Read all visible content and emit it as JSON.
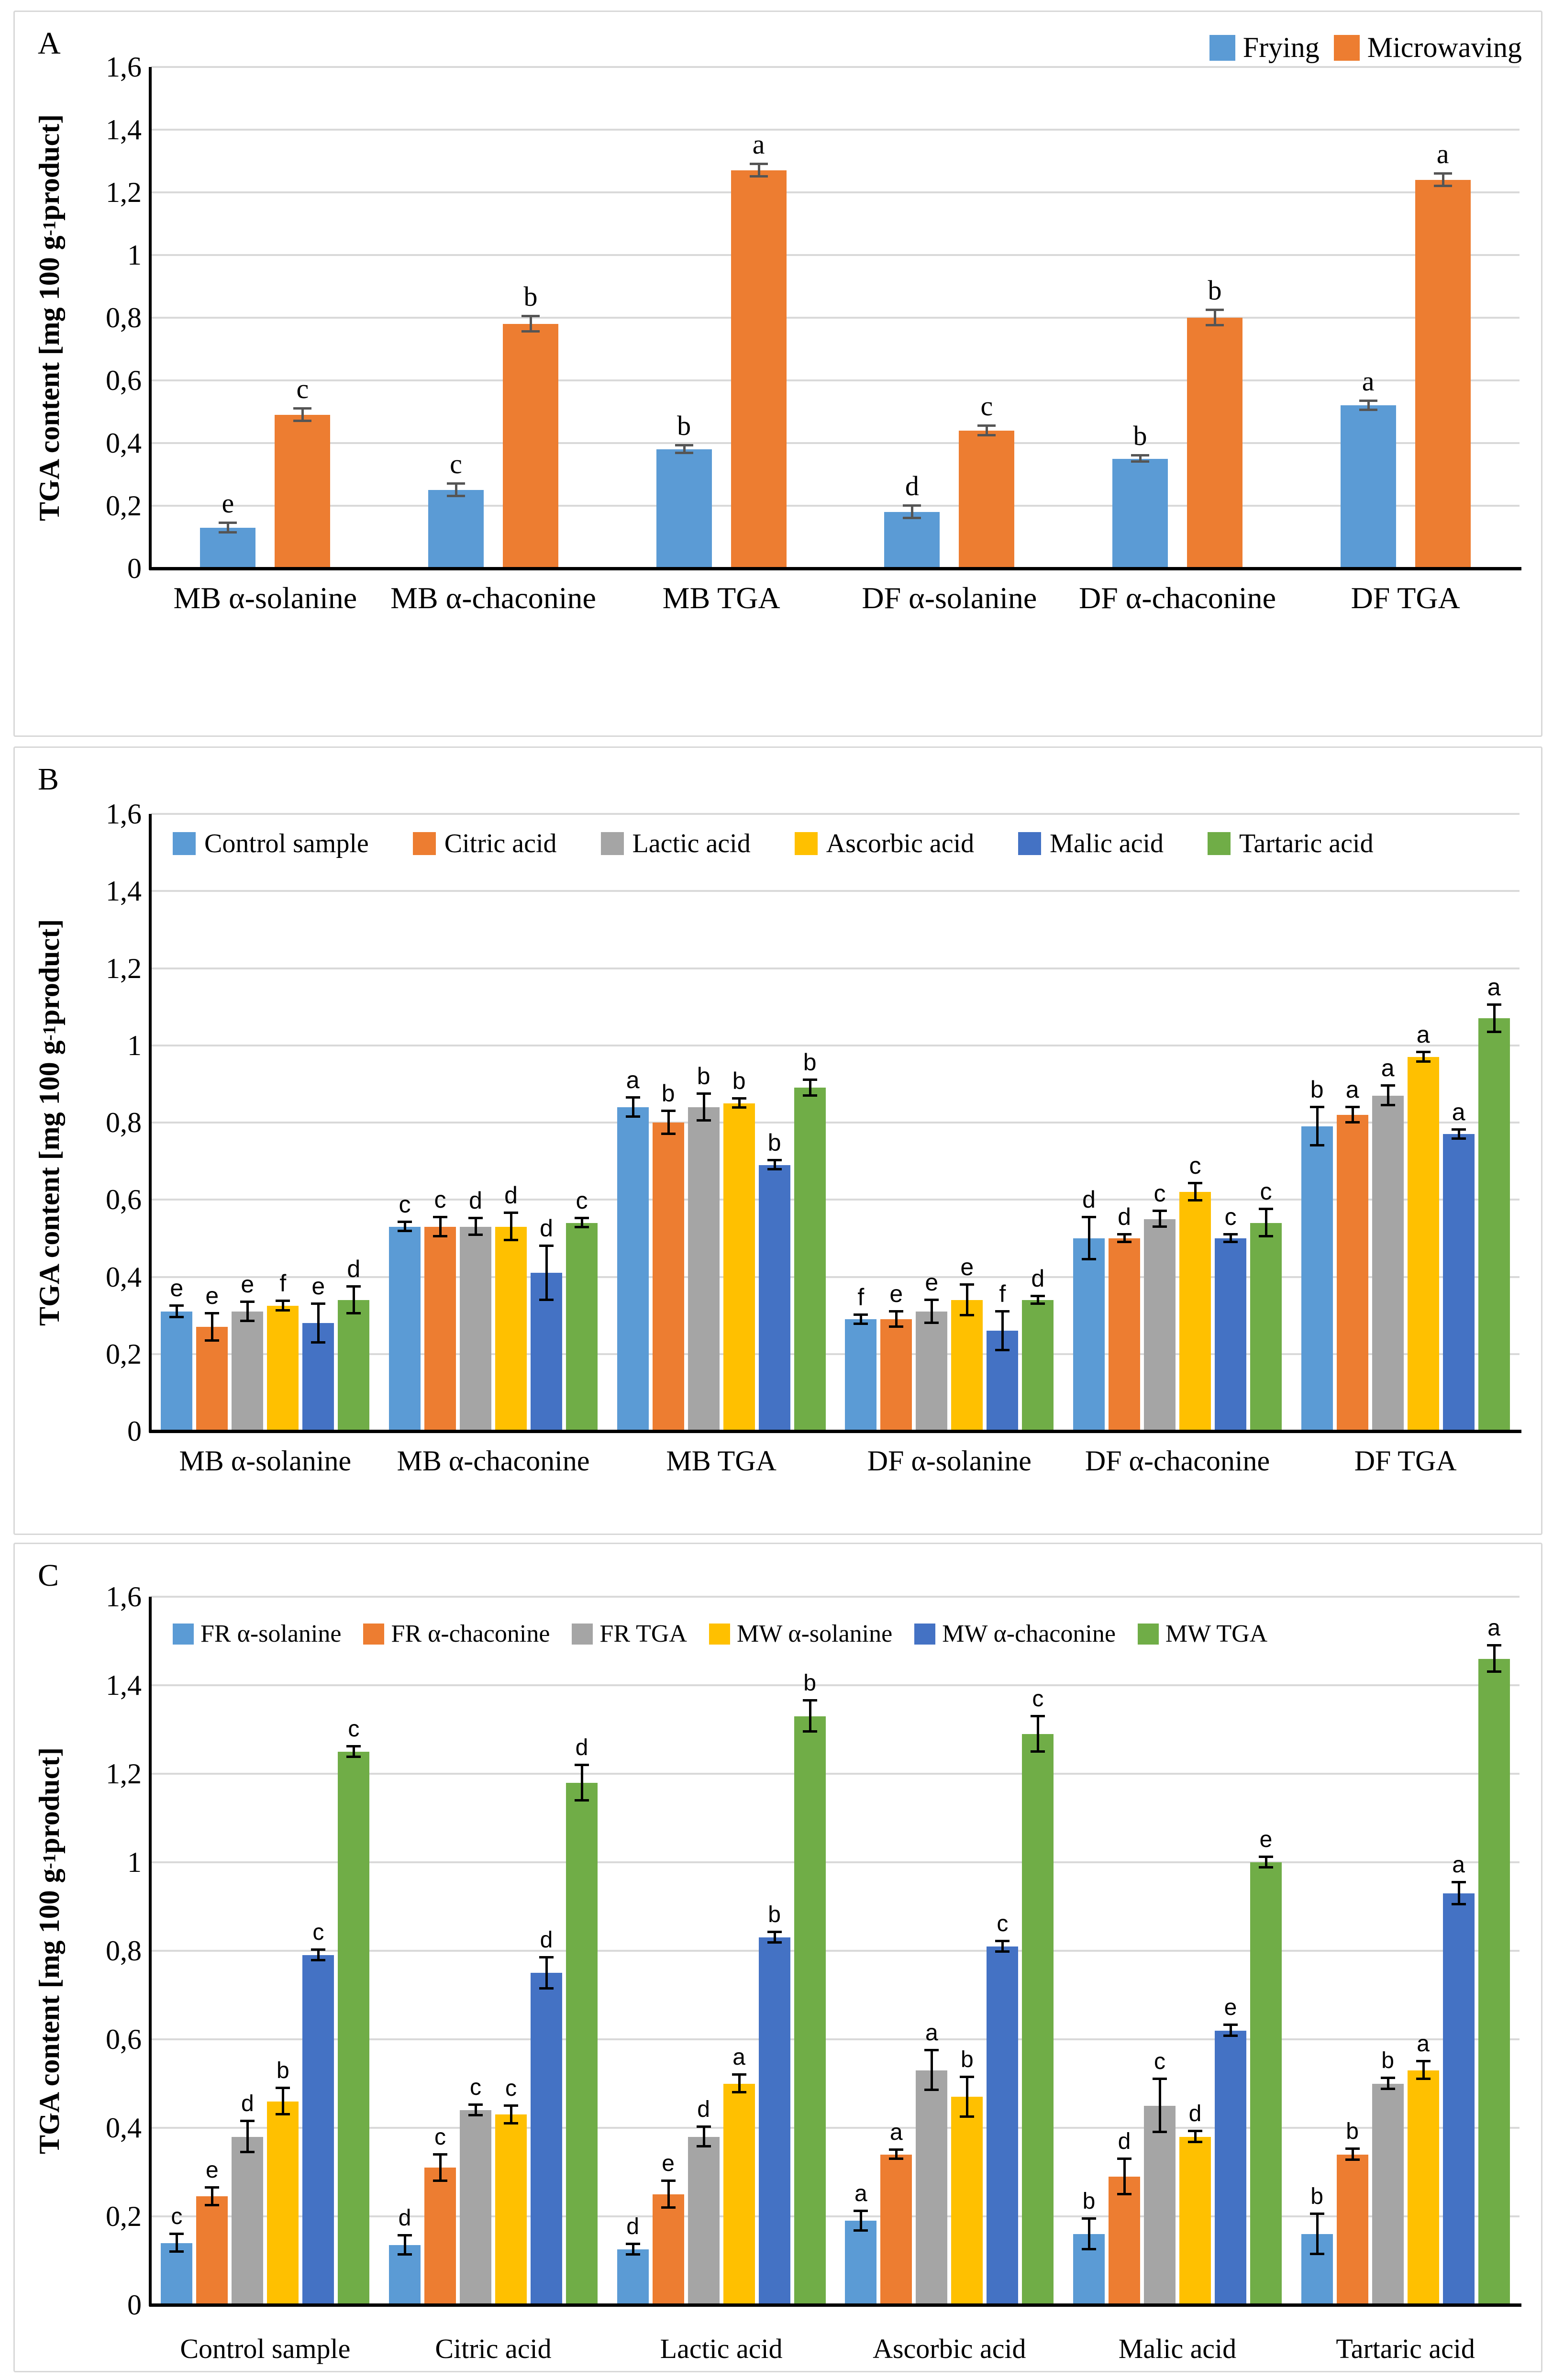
{
  "figure": {
    "ylabel_prefix": "TGA content [mg 100 g",
    "ylabel_sup": "-1",
    "ylabel_suffix": " product]"
  },
  "chart_data": [
    {
      "type": "bar",
      "panel_label": "A",
      "ylabel_prefix": "TGA content [mg 100 g",
      "ylabel_sup": "-1",
      "ylabel_suffix": " product]",
      "ymax": 1.6,
      "ytick_labels": [
        "0",
        "0,2",
        "0,4",
        "0,6",
        "0,8",
        "1",
        "1,2",
        "1,4",
        "1,6"
      ],
      "grid": true,
      "legend_position": "top-right",
      "categories": [
        "MB α-solanine",
        "MB α-chaconine",
        "MB TGA",
        "DF α-solanine",
        "DF α-chaconine",
        "DF TGA"
      ],
      "series": [
        {
          "name": "Frying",
          "color": "#5B9BD5",
          "values": [
            0.13,
            0.25,
            0.38,
            0.18,
            0.35,
            0.52
          ],
          "errors": [
            0.015,
            0.02,
            0.012,
            0.02,
            0.01,
            0.015
          ],
          "letters": [
            "e",
            "c",
            "b",
            "d",
            "b",
            "a"
          ]
        },
        {
          "name": "Microwaving",
          "color": "#ED7D31",
          "values": [
            0.49,
            0.78,
            1.27,
            0.44,
            0.8,
            1.24
          ],
          "errors": [
            0.02,
            0.025,
            0.02,
            0.015,
            0.025,
            0.02
          ],
          "letters": [
            "c",
            "b",
            "a",
            "c",
            "b",
            "a"
          ]
        }
      ]
    },
    {
      "type": "bar",
      "panel_label": "B",
      "ylabel_prefix": "TGA content [mg 100 g",
      "ylabel_sup": "-1",
      "ylabel_suffix": " product]",
      "ymax": 1.6,
      "ytick_labels": [
        "0",
        "0,2",
        "0,4",
        "0,6",
        "0,8",
        "1",
        "1,2",
        "1,4",
        "1,6"
      ],
      "grid": true,
      "legend_position": "top-row",
      "categories": [
        "MB α-solanine",
        "MB α-chaconine",
        "MB TGA",
        "DF α-solanine",
        "DF α-chaconine",
        "DF TGA"
      ],
      "series": [
        {
          "name": "Control sample",
          "color": "#5B9BD5",
          "values": [
            0.31,
            0.53,
            0.84,
            0.29,
            0.5,
            0.79
          ],
          "errors": [
            0.015,
            0.012,
            0.025,
            0.012,
            0.055,
            0.05
          ],
          "letters": [
            "e",
            "c",
            "a",
            "f",
            "d",
            "b"
          ]
        },
        {
          "name": "Citric acid",
          "color": "#ED7D31",
          "values": [
            0.27,
            0.53,
            0.8,
            0.29,
            0.5,
            0.82
          ],
          "errors": [
            0.035,
            0.025,
            0.03,
            0.02,
            0.01,
            0.02
          ],
          "letters": [
            "e",
            "c",
            "b",
            "e",
            "d",
            "a"
          ]
        },
        {
          "name": "Lactic acid",
          "color": "#A5A5A5",
          "values": [
            0.31,
            0.53,
            0.84,
            0.31,
            0.55,
            0.87
          ],
          "errors": [
            0.025,
            0.022,
            0.035,
            0.03,
            0.02,
            0.025
          ],
          "letters": [
            "e",
            "d",
            "b",
            "e",
            "c",
            "a"
          ]
        },
        {
          "name": "Ascorbic acid",
          "color": "#FFC000",
          "values": [
            0.325,
            0.53,
            0.85,
            0.34,
            0.62,
            0.97
          ],
          "errors": [
            0.012,
            0.035,
            0.012,
            0.04,
            0.022,
            0.012
          ],
          "letters": [
            "f",
            "d",
            "b",
            "e",
            "c",
            "a"
          ]
        },
        {
          "name": "Malic acid",
          "color": "#4472C4",
          "values": [
            0.28,
            0.41,
            0.69,
            0.26,
            0.5,
            0.77
          ],
          "errors": [
            0.05,
            0.07,
            0.012,
            0.05,
            0.01,
            0.012
          ],
          "letters": [
            "e",
            "d",
            "b",
            "f",
            "c",
            "a"
          ]
        },
        {
          "name": "Tartaric acid",
          "color": "#70AD47",
          "values": [
            0.34,
            0.54,
            0.89,
            0.34,
            0.54,
            1.07
          ],
          "errors": [
            0.035,
            0.012,
            0.02,
            0.01,
            0.035,
            0.035
          ],
          "letters": [
            "d",
            "c",
            "b",
            "d",
            "c",
            "a"
          ]
        }
      ]
    },
    {
      "type": "bar",
      "panel_label": "C",
      "ylabel_prefix": "TGA content [mg 100 g",
      "ylabel_sup": "-1",
      "ylabel_suffix": " product]",
      "ymax": 1.6,
      "ytick_labels": [
        "0",
        "0,2",
        "0,4",
        "0,6",
        "0,8",
        "1",
        "1,2",
        "1,4",
        "1,6"
      ],
      "grid": true,
      "legend_position": "top-row",
      "categories": [
        "Control sample",
        "Citric acid",
        "Lactic acid",
        "Ascorbic acid",
        "Malic acid",
        "Tartaric acid"
      ],
      "series": [
        {
          "name": "FR α-solanine",
          "color": "#5B9BD5",
          "values": [
            0.14,
            0.135,
            0.125,
            0.19,
            0.16,
            0.16
          ],
          "errors": [
            0.02,
            0.022,
            0.012,
            0.022,
            0.035,
            0.045
          ],
          "letters": [
            "c",
            "d",
            "d",
            "a",
            "b",
            "b"
          ]
        },
        {
          "name": "FR α-chaconine",
          "color": "#ED7D31",
          "values": [
            0.245,
            0.31,
            0.25,
            0.34,
            0.29,
            0.34
          ],
          "errors": [
            0.02,
            0.03,
            0.03,
            0.01,
            0.04,
            0.012
          ],
          "letters": [
            "e",
            "c",
            "e",
            "a",
            "d",
            "b"
          ]
        },
        {
          "name": "FR TGA",
          "color": "#A5A5A5",
          "values": [
            0.38,
            0.44,
            0.38,
            0.53,
            0.45,
            0.5
          ],
          "errors": [
            0.035,
            0.012,
            0.022,
            0.045,
            0.06,
            0.012
          ],
          "letters": [
            "d",
            "c",
            "d",
            "a",
            "c",
            "b"
          ]
        },
        {
          "name": "MW α-solanine",
          "color": "#FFC000",
          "values": [
            0.46,
            0.43,
            0.5,
            0.47,
            0.38,
            0.53
          ],
          "errors": [
            0.03,
            0.02,
            0.02,
            0.045,
            0.012,
            0.02
          ],
          "letters": [
            "b",
            "c",
            "a",
            "b",
            "d",
            "a"
          ]
        },
        {
          "name": "MW α-chaconine",
          "color": "#4472C4",
          "values": [
            0.79,
            0.75,
            0.83,
            0.81,
            0.62,
            0.93
          ],
          "errors": [
            0.012,
            0.035,
            0.012,
            0.012,
            0.012,
            0.025
          ],
          "letters": [
            "c",
            "d",
            "b",
            "c",
            "e",
            "a"
          ]
        },
        {
          "name": "MW TGA",
          "color": "#70AD47",
          "values": [
            1.25,
            1.18,
            1.33,
            1.29,
            1.0,
            1.46
          ],
          "errors": [
            0.012,
            0.04,
            0.035,
            0.04,
            0.012,
            0.03
          ],
          "letters": [
            "c",
            "d",
            "b",
            "c",
            "e",
            "a"
          ]
        }
      ]
    }
  ]
}
